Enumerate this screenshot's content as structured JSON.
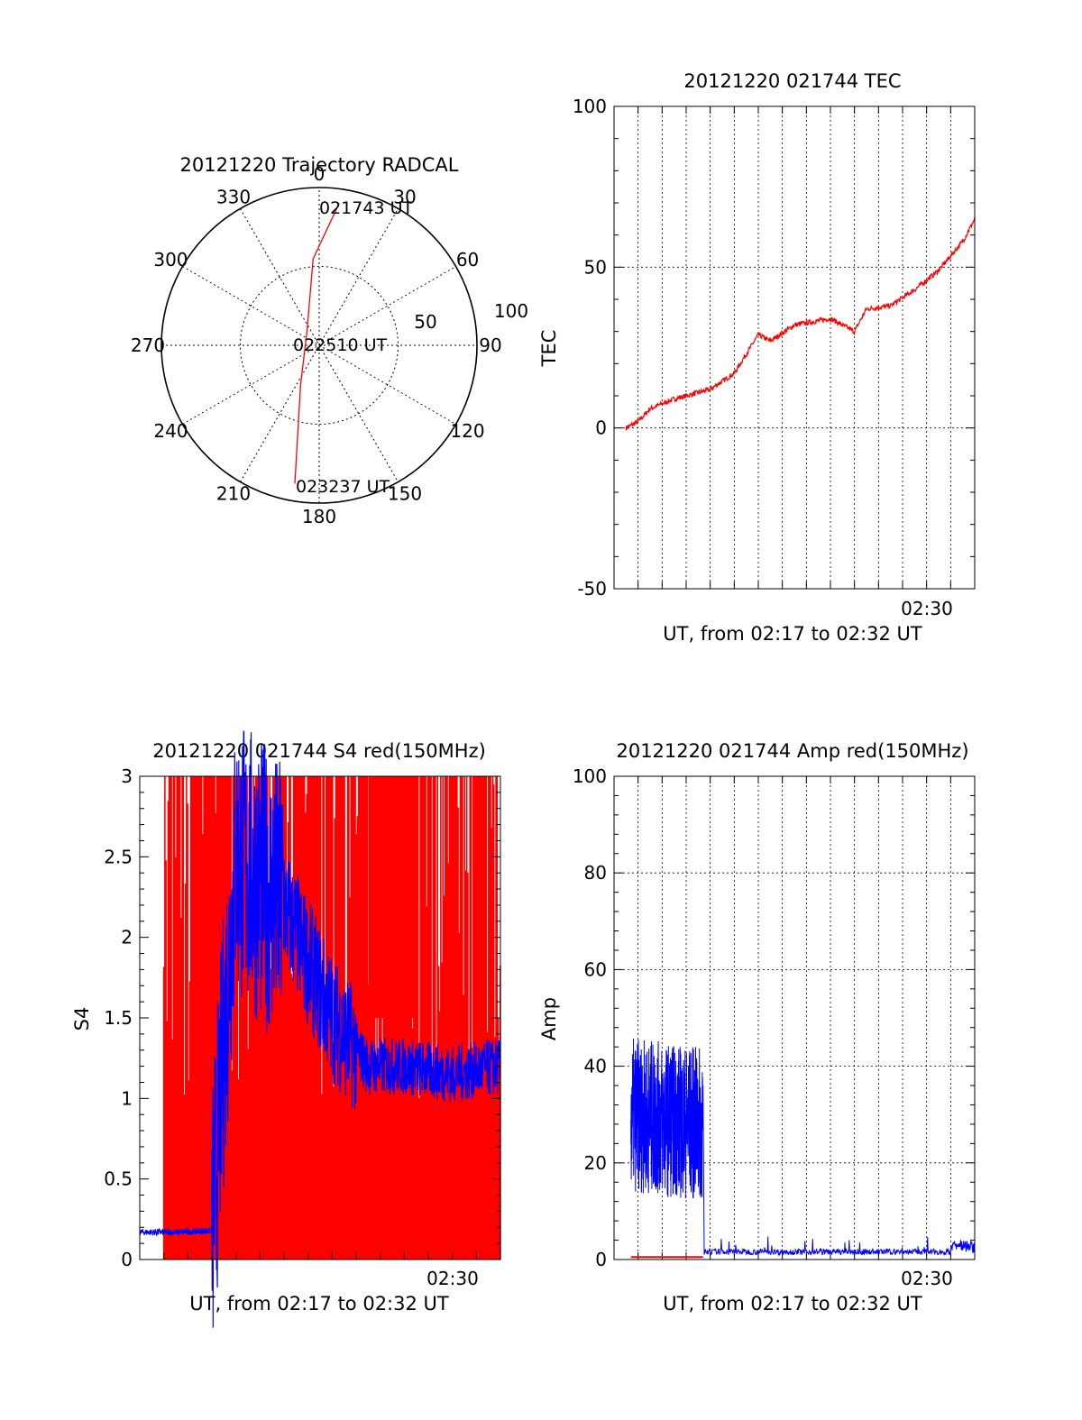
{
  "colors": {
    "red": "#ff0000",
    "blue": "#0000ff",
    "axis": "#000000",
    "grid": "#000000"
  },
  "chart_data": [
    {
      "type": "polar",
      "title": "20121220 Trajectory RADCAL",
      "azimuth_labels": [
        {
          "az": 0,
          "label": "0"
        },
        {
          "az": 30,
          "label": "30"
        },
        {
          "az": 60,
          "label": "60"
        },
        {
          "az": 90,
          "label": "90"
        },
        {
          "az": 120,
          "label": "120"
        },
        {
          "az": 150,
          "label": "150"
        },
        {
          "az": 180,
          "label": "180"
        },
        {
          "az": 210,
          "label": "210"
        },
        {
          "az": 240,
          "label": "240"
        },
        {
          "az": 270,
          "label": "270"
        },
        {
          "az": 300,
          "label": "300"
        },
        {
          "az": 330,
          "label": "330"
        }
      ],
      "radial_labels": [
        "50",
        "100"
      ],
      "radial_range": [
        0,
        100
      ],
      "trajectory": [
        {
          "az": 8,
          "r": 91
        },
        {
          "az": 356,
          "r": 55
        },
        {
          "az": 320,
          "r": 12
        },
        {
          "az": 205,
          "r": 28
        },
        {
          "az": 190,
          "r": 89
        }
      ],
      "annotations": [
        "021743 UT",
        "022510 UT",
        "023237 UT"
      ],
      "trajectory_color": "red"
    },
    {
      "type": "line",
      "title": "20121220 021744 TEC",
      "xlabel": "UT, from 02:17 to 02:32 UT",
      "ylabel": "TEC",
      "ylim": [
        -50,
        100
      ],
      "yticks": [
        "100",
        "50",
        "0",
        "-50"
      ],
      "xtick_label": "02:30",
      "grid": true,
      "series": [
        {
          "color": "red",
          "x_minutes": [
            0.5,
            1.0,
            1.5,
            2.5,
            4.0,
            5.0,
            6.0,
            6.5,
            7.5,
            9.0,
            10.0,
            10.5,
            11.5,
            12.5,
            13.5,
            14.5,
            15.0
          ],
          "values": [
            0,
            2,
            6,
            9,
            12,
            17,
            29,
            27,
            32,
            34,
            30,
            37,
            38,
            43,
            49,
            58,
            65
          ]
        }
      ]
    },
    {
      "type": "line",
      "title": "20121220 021744 S4 red(150MHz)",
      "xlabel": "UT, from 02:17 to 02:32 UT",
      "ylabel": "S4",
      "ylim": [
        0,
        3
      ],
      "yticks": [
        "3",
        "2.5",
        "2",
        "1.5",
        "1",
        "0.5",
        "0"
      ],
      "xtick_label": "02:30",
      "series": [
        {
          "color": "red",
          "note": "dense vertical lines spanning 0 to 3 across whole interval"
        },
        {
          "color": "blue",
          "x_minutes": [
            0,
            1.5,
            3.0,
            4.0,
            6.0,
            8.0,
            9.5,
            11,
            13,
            15
          ],
          "values": [
            0.17,
            0.17,
            0.18,
            2.5,
            2.2,
            1.5,
            1.2,
            1.2,
            1.15,
            1.2
          ]
        }
      ]
    },
    {
      "type": "line",
      "title": "20121220 021744 Amp red(150MHz)",
      "xlabel": "UT, from 02:17 to 02:32 UT",
      "ylabel": "Amp",
      "ylim": [
        0,
        100
      ],
      "yticks": [
        "100",
        "80",
        "60",
        "40",
        "20",
        "0"
      ],
      "xtick_label": "02:30",
      "grid": true,
      "series": [
        {
          "color": "blue",
          "x_minutes": [
            0.7,
            3.7,
            3.8,
            15.0
          ],
          "values": [
            30,
            28,
            1,
            1.5
          ]
        },
        {
          "color": "red",
          "x_minutes": [
            0.7,
            3.7
          ],
          "values": [
            0.5,
            0.5
          ]
        }
      ]
    }
  ]
}
